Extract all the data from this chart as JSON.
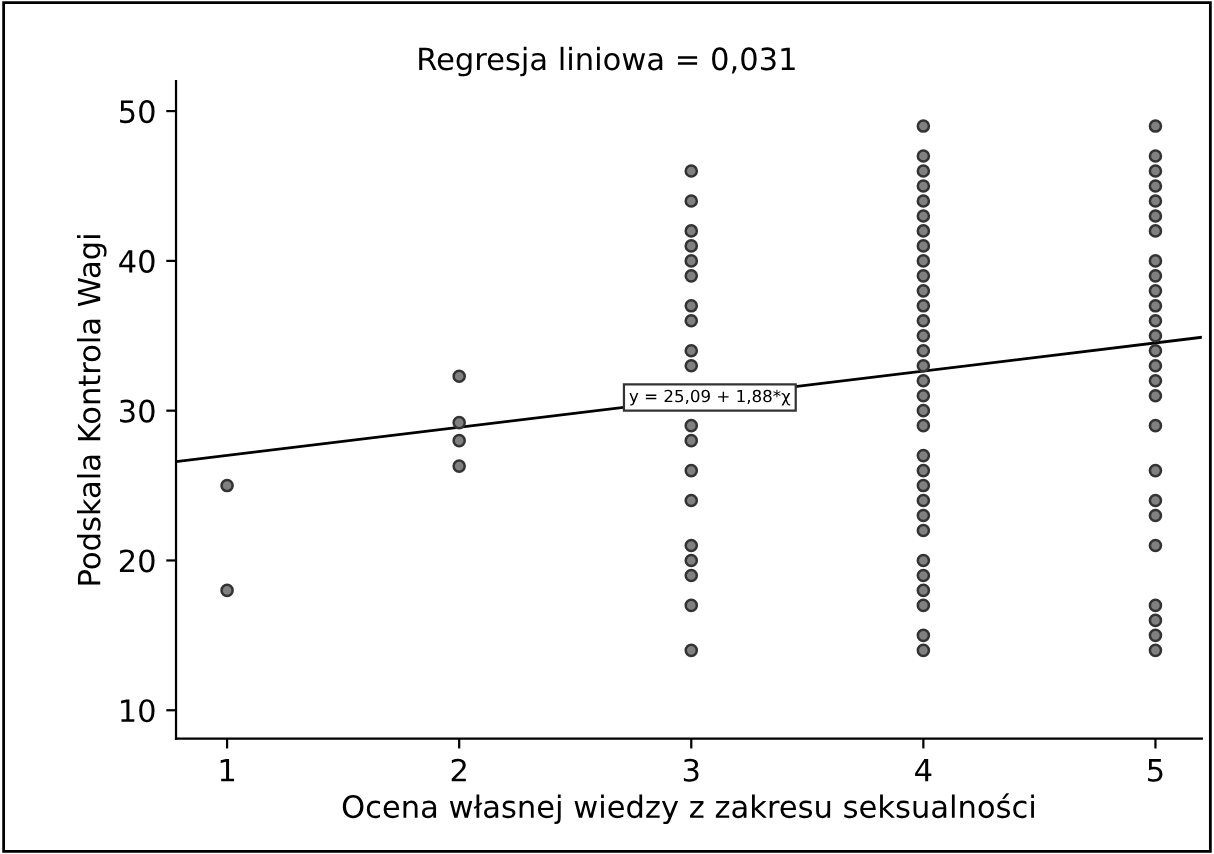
{
  "chart_data": {
    "type": "scatter",
    "title": "Regresja liniowa = 0,031",
    "xlabel": "Ocena własnej wiedzy z zakresu seksualności",
    "ylabel": "Podskala Kontrola Wagi",
    "xlim": [
      0.78,
      5.2
    ],
    "ylim": [
      8.1,
      52
    ],
    "xticks": [
      1,
      2,
      3,
      4,
      5
    ],
    "yticks": [
      10,
      20,
      30,
      40,
      50
    ],
    "grid": false,
    "legend": false,
    "marker": "circle",
    "series": [
      {
        "color": "#808080",
        "x": [
          1,
          1,
          2,
          2,
          2,
          2,
          3,
          3,
          3,
          3,
          3,
          3,
          3,
          3,
          3,
          3,
          3,
          3,
          3,
          3,
          3,
          3,
          3,
          3,
          3,
          4,
          4,
          4,
          4,
          4,
          4,
          4,
          4,
          4,
          4,
          4,
          4,
          4,
          4,
          4,
          4,
          4,
          4,
          4,
          4,
          4,
          4,
          4,
          4,
          4,
          4,
          4,
          4,
          4,
          4,
          4,
          4,
          5,
          5,
          5,
          5,
          5,
          5,
          5,
          5,
          5,
          5,
          5,
          5,
          5,
          5,
          5,
          5,
          5,
          5,
          5,
          5,
          5,
          5,
          5,
          5,
          5,
          5
        ],
        "values": [
          25,
          18,
          32.3,
          29.2,
          28,
          26.3,
          46,
          44,
          42,
          41,
          40,
          39,
          37,
          36,
          34,
          33,
          29,
          28,
          26,
          24,
          21,
          20,
          19,
          17,
          14,
          49,
          47,
          46,
          45,
          44,
          43,
          42,
          41,
          40,
          39,
          38,
          37,
          36,
          35,
          34,
          33,
          32,
          31,
          30,
          29,
          27,
          26,
          25,
          24,
          23,
          22,
          20,
          19,
          18,
          17,
          15,
          14,
          49,
          47,
          46,
          45,
          44,
          43,
          42,
          40,
          39,
          38,
          37,
          36,
          35,
          34,
          33,
          32,
          31,
          29,
          26,
          24,
          23,
          21,
          17,
          16,
          15,
          14
        ]
      },
      {
        "type": "line",
        "color": "#000000",
        "x": [
          0.78,
          5.2
        ],
        "values": [
          26.6,
          34.9
        ],
        "marker": "none",
        "line_style": "solid"
      }
    ],
    "annotations": [
      {
        "text": "y = 25,09 + 1,88*χ",
        "x": 3.08,
        "y": 30.88
      }
    ]
  }
}
